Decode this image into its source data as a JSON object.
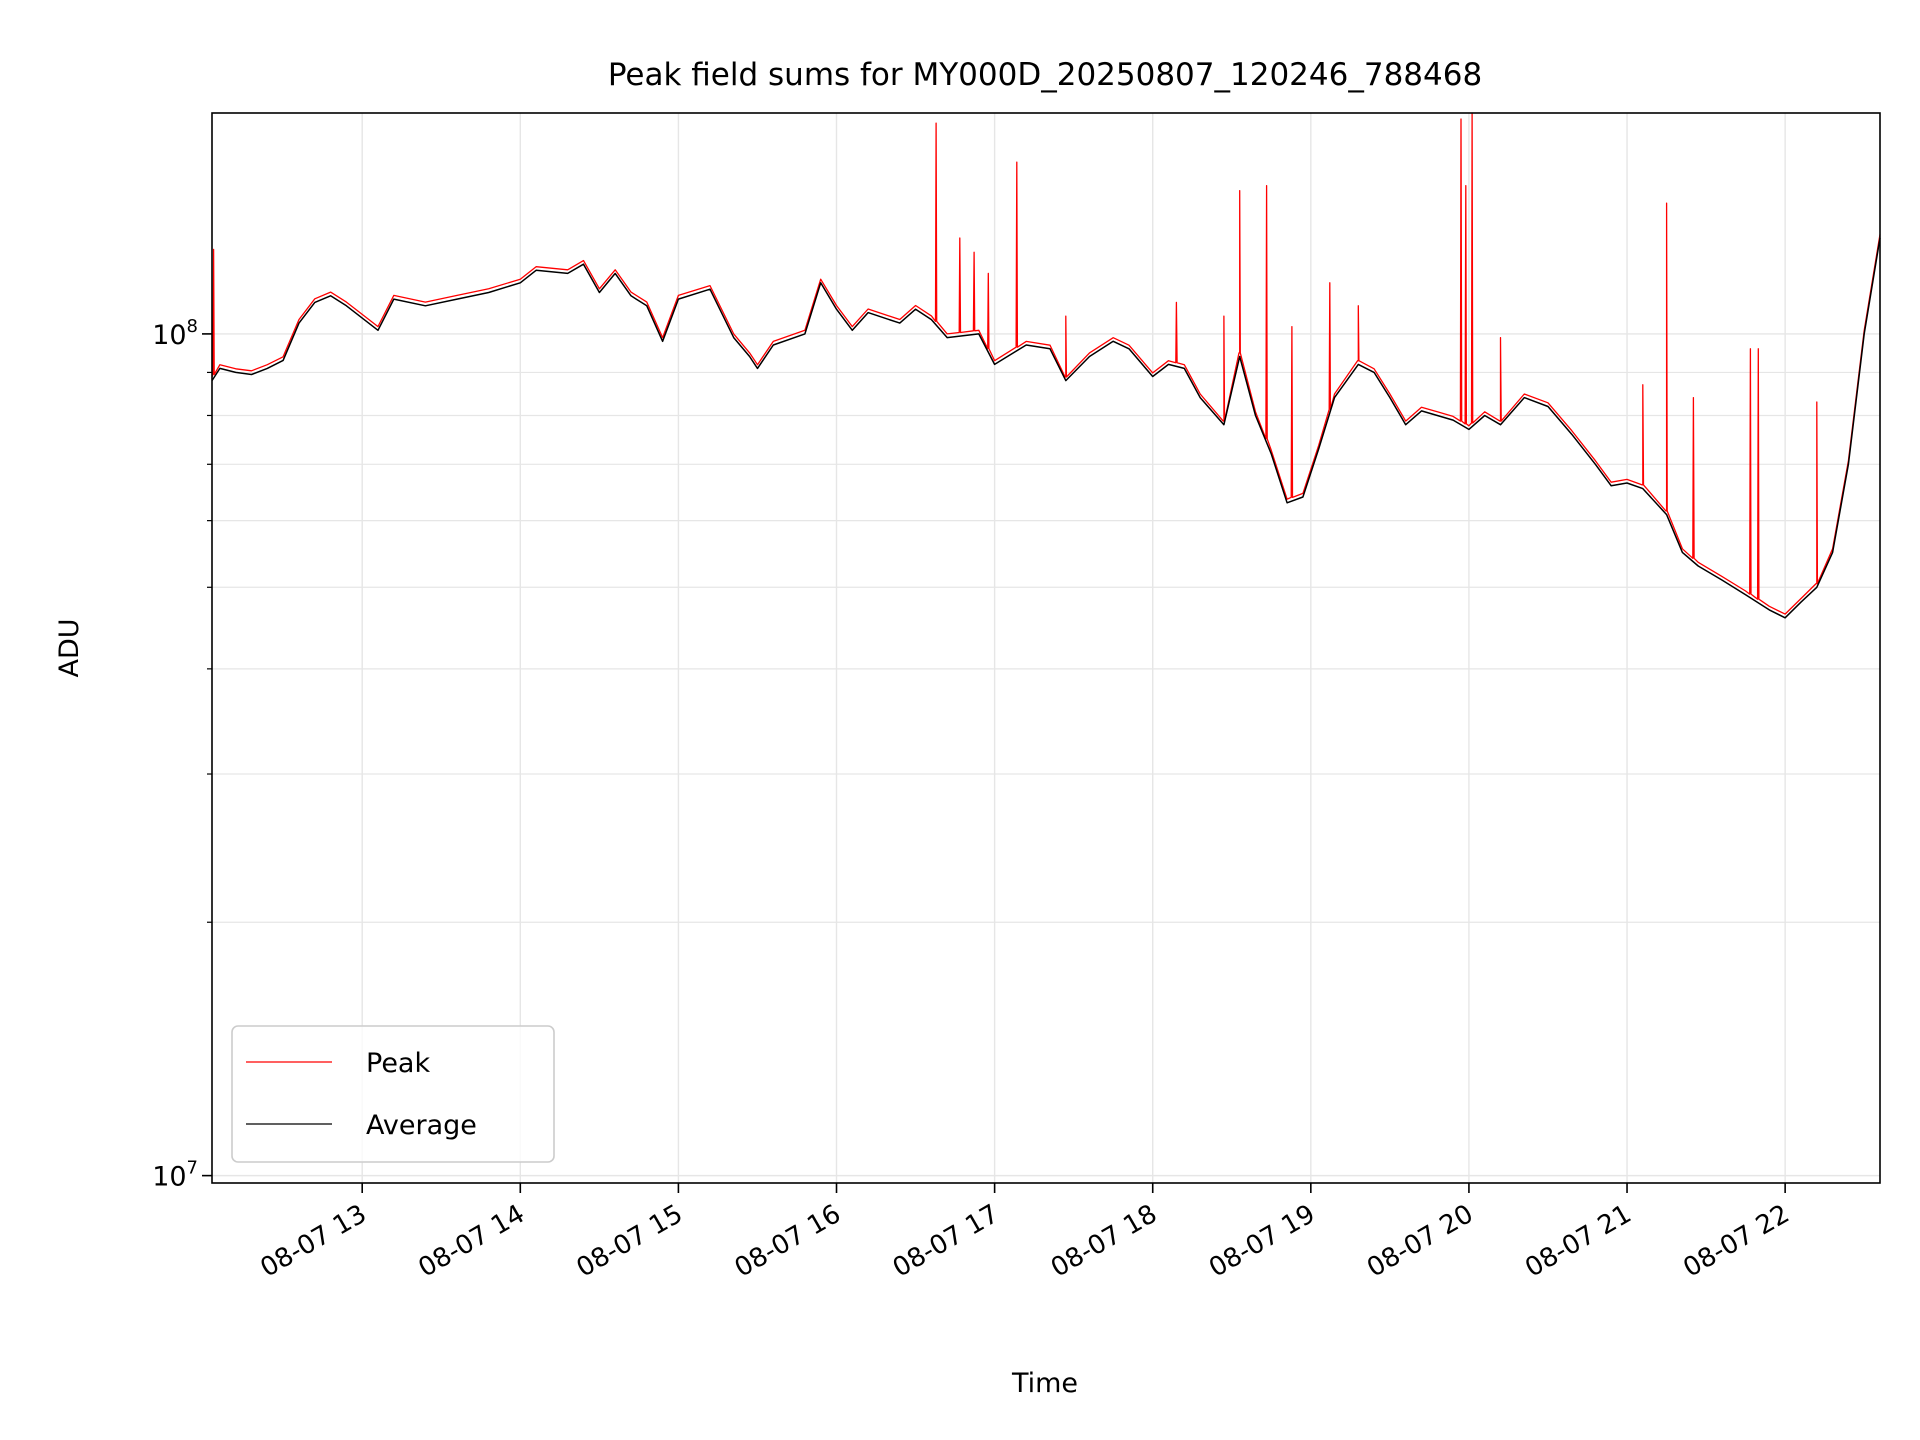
{
  "chart_data": {
    "type": "line",
    "title": "Peak field sums for MY000D_20250807_120246_788468",
    "xlabel": "Time",
    "ylabel": "ADU",
    "yscale": "log",
    "ylim": [
      9800000,
      183000000
    ],
    "xlim_hours": [
      12.05,
      22.6
    ],
    "grid": true,
    "legend_position": "lower-left",
    "x_tick_labels": [
      "08-07 13",
      "08-07 14",
      "08-07 15",
      "08-07 16",
      "08-07 17",
      "08-07 18",
      "08-07 19",
      "08-07 20",
      "08-07 21",
      "08-07 22"
    ],
    "x_ticks_hours": [
      13,
      14,
      15,
      16,
      17,
      18,
      19,
      20,
      21,
      22
    ],
    "y_tick_labels": [
      {
        "base": "10",
        "exp": "8",
        "value": 100000000
      },
      {
        "base": "10",
        "exp": "7",
        "value": 10000000
      }
    ],
    "y_minor_ticks": [
      20000000,
      30000000,
      40000000,
      50000000,
      60000000,
      70000000,
      80000000,
      90000000
    ],
    "series": [
      {
        "name": "Peak",
        "color": "#ff0000",
        "spikes": [
          [
            12.06,
            126000000
          ],
          [
            16.63,
            178000000
          ],
          [
            16.78,
            130000000
          ],
          [
            16.87,
            125000000
          ],
          [
            16.96,
            118000000
          ],
          [
            17.14,
            160000000
          ],
          [
            17.45,
            105000000
          ],
          [
            18.15,
            109000000
          ],
          [
            18.45,
            105000000
          ],
          [
            18.55,
            148000000
          ],
          [
            18.72,
            150000000
          ],
          [
            18.88,
            102000000
          ],
          [
            19.12,
            115000000
          ],
          [
            19.3,
            108000000
          ],
          [
            19.95,
            180000000
          ],
          [
            19.98,
            150000000
          ],
          [
            20.02,
            183000000
          ],
          [
            20.2,
            99000000
          ],
          [
            21.1,
            87000000
          ],
          [
            21.25,
            143000000
          ],
          [
            21.42,
            84000000
          ],
          [
            21.78,
            96000000
          ],
          [
            21.83,
            96000000
          ],
          [
            22.2,
            83000000
          ]
        ]
      },
      {
        "name": "Average",
        "color": "#000000",
        "points": [
          [
            12.05,
            88000000
          ],
          [
            12.1,
            91000000
          ],
          [
            12.2,
            90000000
          ],
          [
            12.3,
            89500000
          ],
          [
            12.4,
            91000000
          ],
          [
            12.5,
            93000000
          ],
          [
            12.6,
            103000000
          ],
          [
            12.7,
            109000000
          ],
          [
            12.8,
            111000000
          ],
          [
            12.9,
            108000000
          ],
          [
            13.1,
            101000000
          ],
          [
            13.2,
            110000000
          ],
          [
            13.4,
            108000000
          ],
          [
            13.6,
            110000000
          ],
          [
            13.8,
            112000000
          ],
          [
            14.0,
            115000000
          ],
          [
            14.1,
            119000000
          ],
          [
            14.3,
            118000000
          ],
          [
            14.4,
            121000000
          ],
          [
            14.5,
            112000000
          ],
          [
            14.6,
            118000000
          ],
          [
            14.7,
            111000000
          ],
          [
            14.8,
            108000000
          ],
          [
            14.9,
            98000000
          ],
          [
            15.0,
            110000000
          ],
          [
            15.2,
            113000000
          ],
          [
            15.35,
            99000000
          ],
          [
            15.45,
            94000000
          ],
          [
            15.5,
            91000000
          ],
          [
            15.6,
            97000000
          ],
          [
            15.8,
            100000000
          ],
          [
            15.9,
            115000000
          ],
          [
            16.0,
            107000000
          ],
          [
            16.1,
            101000000
          ],
          [
            16.2,
            106000000
          ],
          [
            16.4,
            103000000
          ],
          [
            16.5,
            107000000
          ],
          [
            16.6,
            104000000
          ],
          [
            16.7,
            99000000
          ],
          [
            16.9,
            100000000
          ],
          [
            17.0,
            92000000
          ],
          [
            17.2,
            97000000
          ],
          [
            17.35,
            96000000
          ],
          [
            17.45,
            88000000
          ],
          [
            17.6,
            94000000
          ],
          [
            17.75,
            98000000
          ],
          [
            17.85,
            96000000
          ],
          [
            18.0,
            89000000
          ],
          [
            18.1,
            92000000
          ],
          [
            18.2,
            91000000
          ],
          [
            18.3,
            84000000
          ],
          [
            18.45,
            78000000
          ],
          [
            18.55,
            94000000
          ],
          [
            18.65,
            80000000
          ],
          [
            18.75,
            72000000
          ],
          [
            18.85,
            63000000
          ],
          [
            18.95,
            64000000
          ],
          [
            19.05,
            73000000
          ],
          [
            19.15,
            84000000
          ],
          [
            19.3,
            92000000
          ],
          [
            19.4,
            90000000
          ],
          [
            19.5,
            84000000
          ],
          [
            19.6,
            78000000
          ],
          [
            19.7,
            81000000
          ],
          [
            19.8,
            80000000
          ],
          [
            19.9,
            79000000
          ],
          [
            20.0,
            77000000
          ],
          [
            20.1,
            80000000
          ],
          [
            20.2,
            78000000
          ],
          [
            20.35,
            84000000
          ],
          [
            20.5,
            82000000
          ],
          [
            20.65,
            76000000
          ],
          [
            20.8,
            70000000
          ],
          [
            20.9,
            66000000
          ],
          [
            21.0,
            66500000
          ],
          [
            21.1,
            65500000
          ],
          [
            21.25,
            61000000
          ],
          [
            21.35,
            55000000
          ],
          [
            21.45,
            53000000
          ],
          [
            21.6,
            51000000
          ],
          [
            21.75,
            49000000
          ],
          [
            21.9,
            47000000
          ],
          [
            22.0,
            46000000
          ],
          [
            22.1,
            48000000
          ],
          [
            22.2,
            50000000
          ],
          [
            22.3,
            55000000
          ],
          [
            22.4,
            70000000
          ],
          [
            22.5,
            100000000
          ],
          [
            22.6,
            130000000
          ]
        ]
      }
    ]
  }
}
